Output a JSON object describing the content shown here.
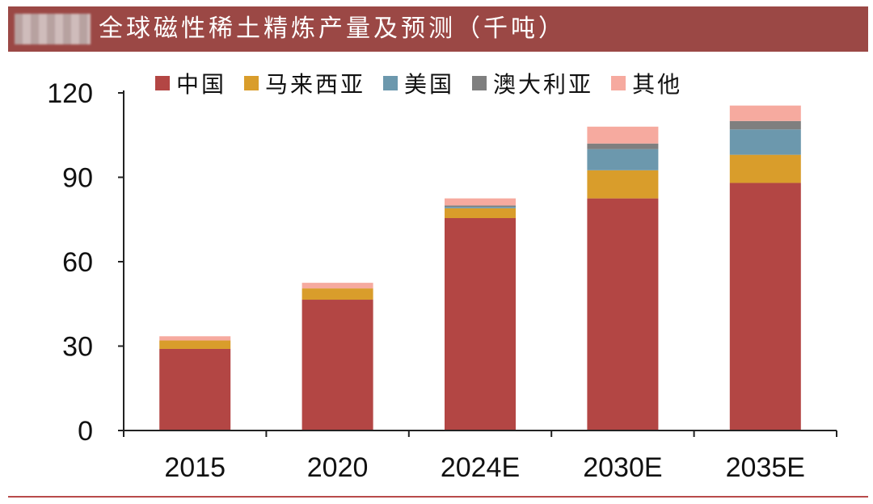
{
  "title": {
    "text": "全球磁性稀土精炼产量及预测（千吨）"
  },
  "colors": {
    "title_bar": "#9b4845",
    "china": "#b34644",
    "malaysia": "#d99d2b",
    "usa": "#6c98ad",
    "australia": "#7f7f7f",
    "other": "#f6aa9f",
    "rule": "#b84a4a"
  },
  "chart_data": {
    "type": "bar",
    "stacked": true,
    "title": "全球磁性稀土精炼产量及预测（千吨）",
    "xlabel": "",
    "ylabel": "",
    "categories": [
      "2015",
      "2020",
      "2024E",
      "2030E",
      "2035E"
    ],
    "yticks": [
      "0",
      "30",
      "60",
      "90",
      "120"
    ],
    "ylim": [
      0,
      120
    ],
    "grid": false,
    "legend_position": "top",
    "series": [
      {
        "name": "中国",
        "color": "#b34644",
        "values": [
          29,
          46.5,
          75.5,
          82.5,
          88
        ]
      },
      {
        "name": "马来西亚",
        "color": "#d99d2b",
        "values": [
          3,
          4,
          3.5,
          10,
          10
        ]
      },
      {
        "name": "美国",
        "color": "#6c98ad",
        "values": [
          0,
          0,
          0.5,
          7.5,
          9
        ]
      },
      {
        "name": "澳大利亚",
        "color": "#7f7f7f",
        "values": [
          0,
          0,
          0.5,
          2,
          3
        ]
      },
      {
        "name": "其他",
        "color": "#f6aa9f",
        "values": [
          1.5,
          2,
          2.5,
          6,
          5.5
        ]
      }
    ]
  }
}
